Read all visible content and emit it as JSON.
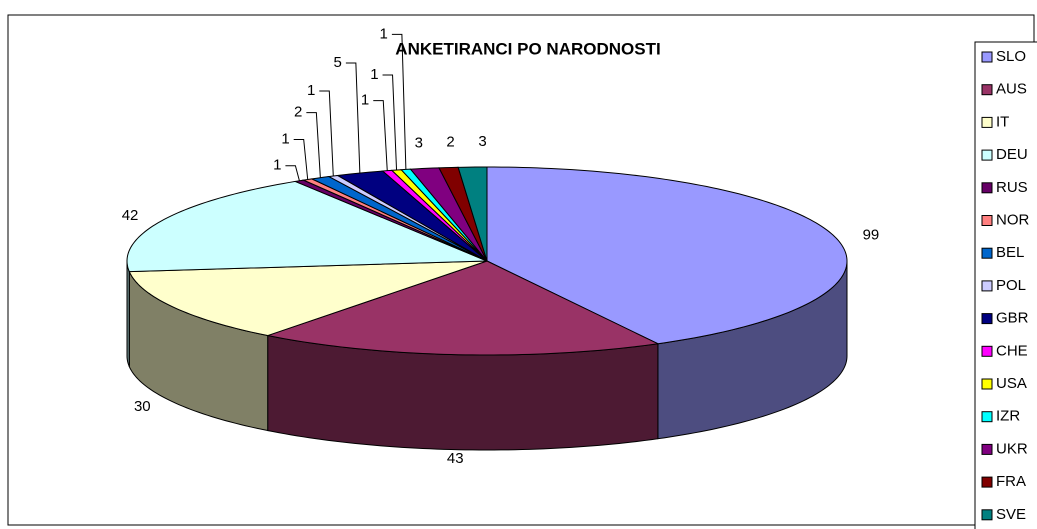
{
  "chart_data": {
    "type": "pie",
    "title": "ANKETIRANCI PO NARODNOSTI",
    "categories": [
      "SLO",
      "AUS",
      "IT",
      "DEU",
      "RUS",
      "NOR",
      "BEL",
      "POL",
      "GBR",
      "CHE",
      "USA",
      "IZR",
      "UKR",
      "FRA",
      "SVE"
    ],
    "values": [
      99,
      43,
      30,
      42,
      1,
      1,
      2,
      1,
      5,
      1,
      1,
      1,
      3,
      2,
      3
    ],
    "colors": [
      "#9999FF",
      "#993366",
      "#FFFFCC",
      "#CCFFFF",
      "#660066",
      "#FF8080",
      "#0066CC",
      "#CCCCFF",
      "#000080",
      "#FF00FF",
      "#FFFF00",
      "#00FFFF",
      "#800080",
      "#800000",
      "#008080"
    ],
    "legend": "right"
  }
}
